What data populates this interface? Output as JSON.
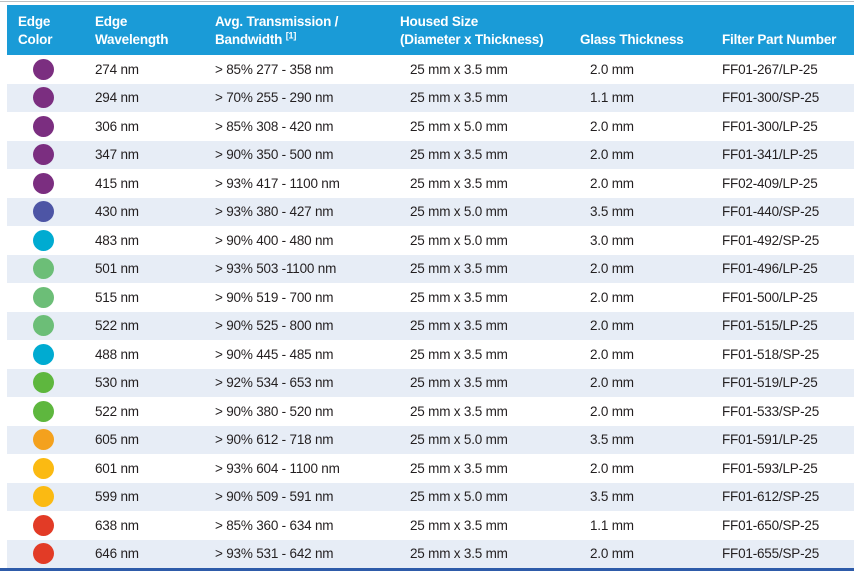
{
  "table": {
    "colors": {
      "header_bg": "#1a9bd7",
      "row_alt_bg": "#e7edf6",
      "text": "#231f20",
      "header_text": "#ffffff",
      "bottom_bar": "#2e5ba9",
      "top_line": "#bdc0c2"
    },
    "dot_colors": {
      "purple": "#7b2e80",
      "indigo": "#4d55a5",
      "cyan": "#00abd1",
      "soft-green": "#6cbe77",
      "bright-green": "#5eb73e",
      "orange": "#f4a11d",
      "gold": "#fbba12",
      "red": "#e23b26"
    },
    "header": {
      "col1": {
        "line1": "Edge",
        "line2": "Color"
      },
      "col2": {
        "line1": "Edge",
        "line2": "Wavelength"
      },
      "col3": {
        "line1": "Avg. Transmission /",
        "line2": "Bandwidth ",
        "sup": "[1]"
      },
      "col4": {
        "line1": "Housed Size",
        "line2": "(Diameter x Thickness)"
      },
      "col5": {
        "line1": "",
        "line2": "Glass Thickness"
      },
      "col6": {
        "line1": "",
        "line2": "Filter Part Number"
      }
    },
    "rows": [
      {
        "color": "purple",
        "wavelength": "274 nm",
        "transmission": "> 85% 277 - 358 nm",
        "housed_size": "25 mm x 3.5 mm",
        "glass_thickness": "2.0 mm",
        "part_number": "FF01-267/LP-25"
      },
      {
        "color": "purple",
        "wavelength": "294 nm",
        "transmission": "> 70% 255 - 290 nm",
        "housed_size": "25 mm x 3.5 mm",
        "glass_thickness": "1.1 mm",
        "part_number": "FF01-300/SP-25"
      },
      {
        "color": "purple",
        "wavelength": "306 nm",
        "transmission": "> 85% 308 - 420 nm",
        "housed_size": "25 mm x 5.0 mm",
        "glass_thickness": "2.0 mm",
        "part_number": "FF01-300/LP-25"
      },
      {
        "color": "purple",
        "wavelength": "347 nm",
        "transmission": "> 90% 350 - 500 nm",
        "housed_size": "25 mm x 3.5 mm",
        "glass_thickness": "2.0 mm",
        "part_number": "FF01-341/LP-25"
      },
      {
        "color": "purple",
        "wavelength": "415 nm",
        "transmission": "> 93% 417 - 1100 nm",
        "housed_size": "25 mm x 3.5 mm",
        "glass_thickness": "2.0 mm",
        "part_number": "FF02-409/LP-25"
      },
      {
        "color": "indigo",
        "wavelength": "430 nm",
        "transmission": "> 93% 380 - 427 nm",
        "housed_size": "25 mm x 5.0 mm",
        "glass_thickness": "3.5 mm",
        "part_number": "FF01-440/SP-25"
      },
      {
        "color": "cyan",
        "wavelength": "483 nm",
        "transmission": "> 90% 400 - 480 nm",
        "housed_size": "25 mm x 5.0 mm",
        "glass_thickness": "3.0 mm",
        "part_number": "FF01-492/SP-25"
      },
      {
        "color": "soft-green",
        "wavelength": "501 nm",
        "transmission": "> 93% 503 -1100 nm",
        "housed_size": "25 mm x 3.5 mm",
        "glass_thickness": "2.0 mm",
        "part_number": "FF01-496/LP-25"
      },
      {
        "color": "soft-green",
        "wavelength": "515 nm",
        "transmission": "> 90% 519 - 700 nm",
        "housed_size": "25 mm x 3.5 mm",
        "glass_thickness": "2.0 mm",
        "part_number": "FF01-500/LP-25"
      },
      {
        "color": "soft-green",
        "wavelength": "522 nm",
        "transmission": "> 90% 525 - 800 nm",
        "housed_size": "25 mm x 3.5 mm",
        "glass_thickness": "2.0 mm",
        "part_number": "FF01-515/LP-25"
      },
      {
        "color": "cyan",
        "wavelength": "488 nm",
        "transmission": "> 90% 445 - 485 nm",
        "housed_size": "25 mm x 3.5 mm",
        "glass_thickness": "2.0 mm",
        "part_number": "FF01-518/SP-25"
      },
      {
        "color": "bright-green",
        "wavelength": "530 nm",
        "transmission": "> 92% 534 - 653 nm",
        "housed_size": "25 mm x 3.5 mm",
        "glass_thickness": "2.0 mm",
        "part_number": "FF01-519/LP-25"
      },
      {
        "color": "bright-green",
        "wavelength": "522 nm",
        "transmission": "> 90% 380 - 520 nm",
        "housed_size": "25 mm x 3.5 mm",
        "glass_thickness": "2.0 mm",
        "part_number": "FF01-533/SP-25"
      },
      {
        "color": "orange",
        "wavelength": "605 nm",
        "transmission": "> 90% 612 - 718 nm",
        "housed_size": "25 mm x 5.0 mm",
        "glass_thickness": "3.5 mm",
        "part_number": "FF01-591/LP-25"
      },
      {
        "color": "gold",
        "wavelength": "601 nm",
        "transmission": "> 93% 604 - 1100 nm",
        "housed_size": "25 mm x 3.5 mm",
        "glass_thickness": "2.0 mm",
        "part_number": "FF01-593/LP-25"
      },
      {
        "color": "gold",
        "wavelength": "599 nm",
        "transmission": "> 90% 509 - 591 nm",
        "housed_size": "25 mm x 5.0 mm",
        "glass_thickness": "3.5 mm",
        "part_number": "FF01-612/SP-25"
      },
      {
        "color": "red",
        "wavelength": "638 nm",
        "transmission": "> 85% 360 - 634 nm",
        "housed_size": "25 mm x 3.5 mm",
        "glass_thickness": "1.1 mm",
        "part_number": "FF01-650/SP-25"
      },
      {
        "color": "red",
        "wavelength": "646 nm",
        "transmission": "> 93% 531 - 642 nm",
        "housed_size": "25 mm x 3.5 mm",
        "glass_thickness": "2.0 mm",
        "part_number": "FF01-655/SP-25"
      }
    ]
  }
}
